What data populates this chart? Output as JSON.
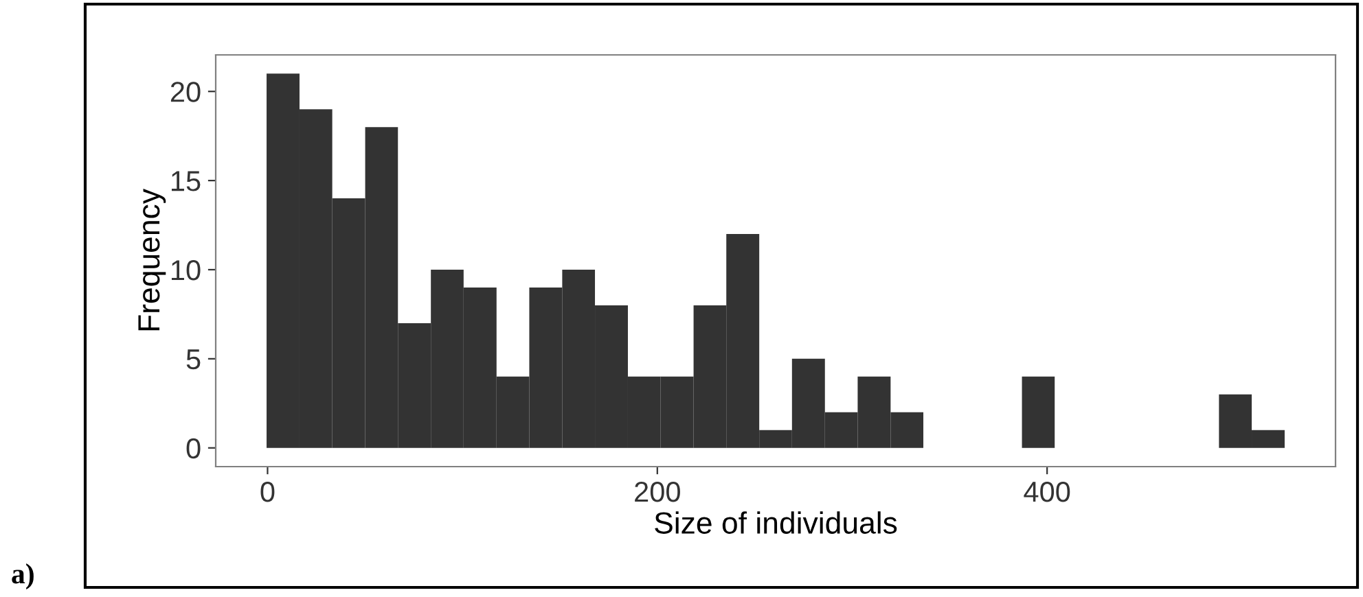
{
  "chart_data": {
    "type": "histogram",
    "xlabel": "Size of individuals",
    "ylabel": "Frequency",
    "annotations": [
      "a)"
    ],
    "bins": [
      -0.5,
      16.4,
      33.2,
      50.1,
      66.9,
      83.8,
      100.6,
      117.5,
      134.3,
      151.2,
      168,
      184.9,
      201.7,
      218.6,
      235.4,
      252.3,
      269.1,
      286,
      302.8,
      319.7,
      336.5,
      353.4,
      370.2,
      387.1,
      403.9,
      420.8,
      437.6,
      454.5,
      471.3,
      488.2,
      505,
      521.9
    ],
    "values": [
      21,
      19,
      14,
      18,
      7,
      10,
      9,
      4,
      9,
      10,
      8,
      4,
      4,
      8,
      12,
      1,
      5,
      2,
      4,
      2,
      0,
      0,
      0,
      4,
      0,
      0,
      0,
      0,
      0,
      3,
      1
    ],
    "color": "#333333",
    "xlim": [
      -26.6,
      548
    ],
    "xticks": [
      0,
      200,
      400
    ],
    "ylim": [
      -1.05,
      22.05
    ],
    "yticks": [
      0,
      5,
      10,
      15,
      20
    ],
    "grid": false
  }
}
